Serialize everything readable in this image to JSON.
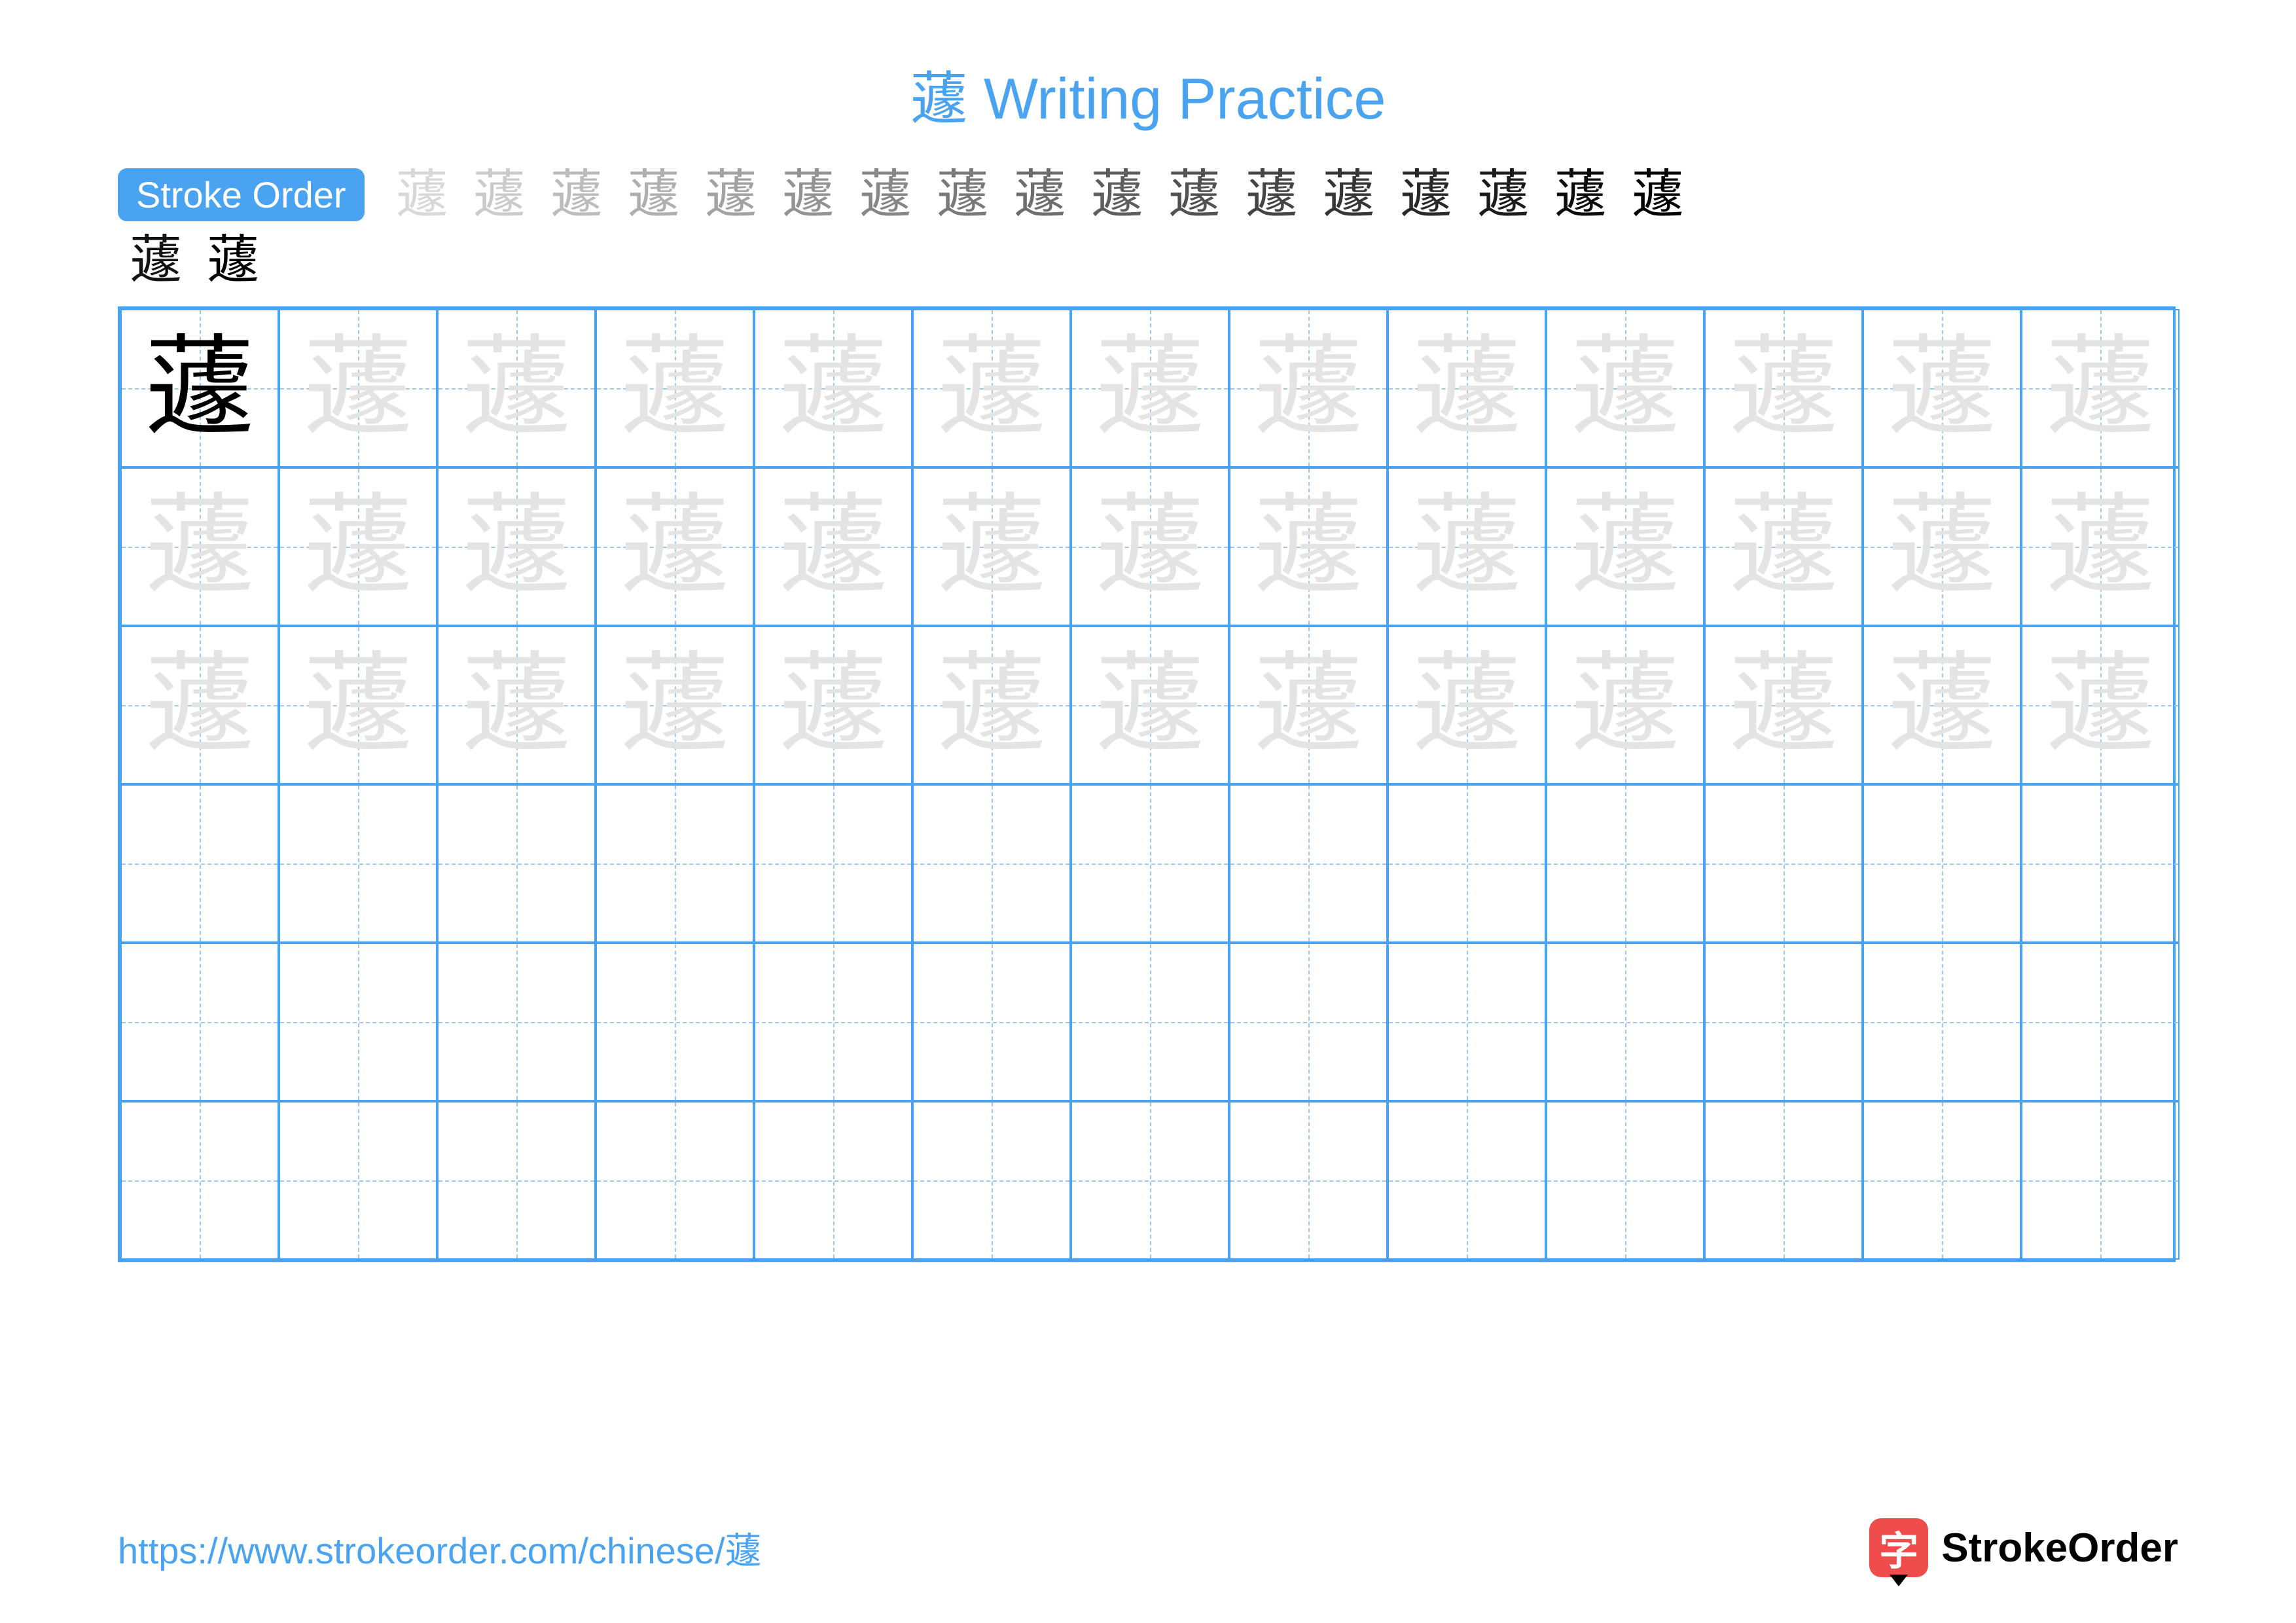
{
  "title": {
    "text": "蘧 Writing Practice",
    "color": "#4aa3f0",
    "fontsize": 88
  },
  "stroke_label": {
    "text": "Stroke Order",
    "bg": "#4aa3f0",
    "color": "#ffffff",
    "fontsize": 56
  },
  "character": "蘧",
  "stroke_steps_row1_count": 17,
  "stroke_steps_row2_count": 2,
  "stroke_step_fontsize": 80,
  "stroke_step_color": "#000000",
  "stroke_highlight_color": "#d83a2b",
  "grid": {
    "cols": 13,
    "rows": 6,
    "cell_size": 242,
    "border_color": "#4aa3f0",
    "guide_color": "#9cc8f3",
    "model_char_color": "#000000",
    "trace_char_color": "#e4e4e4",
    "trace_rows": 3,
    "blank_rows": 3,
    "char_fontsize": 168
  },
  "footer": {
    "url": "https://www.strokeorder.com/chinese/蘧",
    "url_color": "#4aa3f0",
    "brand_text": "StrokeOrder",
    "brand_icon_bg": "#ef4c4c",
    "brand_icon_char": "字"
  },
  "background": "#ffffff"
}
